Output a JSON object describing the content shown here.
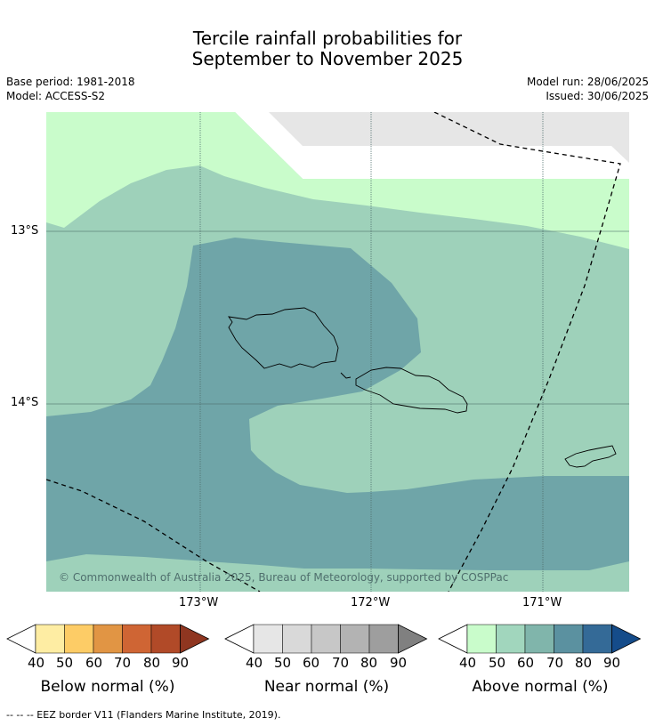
{
  "title": {
    "line1": "Tercile rainfall probabilities for",
    "line2": "September to November 2025"
  },
  "meta": {
    "base_period": "Base period: 1981-2018",
    "model": "Model: ACCESS-S2",
    "model_run": "Model run: 28/06/2025",
    "issued": "Issued: 30/06/2025"
  },
  "map": {
    "copyright": "© Commonwealth of Australia 2025, Bureau of Meteorology, supported by COSPPac",
    "lat_labels": [
      "13°S",
      "14°S"
    ],
    "lon_labels": [
      "173°W",
      "172°W",
      "171°W"
    ],
    "colors": {
      "above_40_50": "#c9fccb",
      "above_50_60": "#9ed1ba",
      "above_60_70": "#6fa5a8",
      "near_normal": "#e6e6e6",
      "no_data": "#ffffff"
    }
  },
  "colorbars": [
    {
      "title": "Below normal (%)",
      "ticks": [
        "40",
        "50",
        "60",
        "70",
        "80",
        "90"
      ],
      "colors": [
        "#feeda3",
        "#fdcc66",
        "#e19544",
        "#cf6534",
        "#b14a28",
        "#8f3620"
      ]
    },
    {
      "title": "Near normal (%)",
      "ticks": [
        "40",
        "50",
        "60",
        "70",
        "80",
        "90"
      ],
      "colors": [
        "#e6e6e6",
        "#d9d9d9",
        "#c7c7c7",
        "#b3b3b3",
        "#9e9e9e",
        "#808080"
      ]
    },
    {
      "title": "Above normal (%)",
      "ticks": [
        "40",
        "50",
        "60",
        "70",
        "80",
        "90"
      ],
      "colors": [
        "#c9fccb",
        "#a1d6bd",
        "#80b5ab",
        "#5b91a0",
        "#346a97",
        "#154c8a"
      ]
    }
  ],
  "footer": {
    "eez_note": "--  --  -- EEZ border V11 (Flanders Marine Institute, 2019)."
  }
}
